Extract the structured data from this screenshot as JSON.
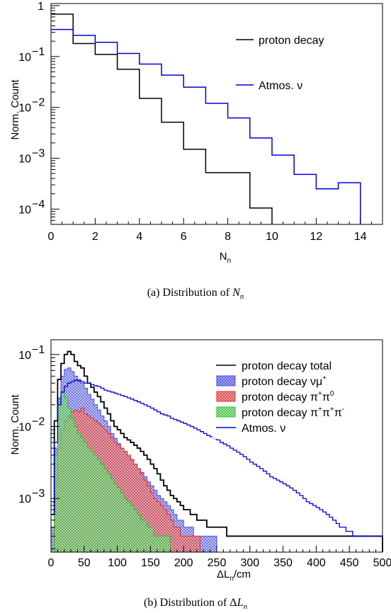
{
  "chart_data": [
    {
      "type": "histogram",
      "caption": "(a)  Distribution of N_n",
      "xlabel": "N_n",
      "ylabel": "Norm. Count",
      "xlim": [
        0,
        15
      ],
      "ylim": [
        5e-05,
        1.1
      ],
      "yscale": "log",
      "x_ticks": [
        0,
        2,
        4,
        6,
        8,
        10,
        12,
        14
      ],
      "y_ticks": [
        {
          "value": 0.0001,
          "base": "10",
          "exp": "−4"
        },
        {
          "value": 0.001,
          "base": "10",
          "exp": "−3"
        },
        {
          "value": 0.01,
          "base": "10",
          "exp": "−2"
        },
        {
          "value": 0.1,
          "base": "10",
          "exp": "−1"
        },
        {
          "value": 1,
          "base": "1",
          "exp": ""
        }
      ],
      "legend_position": "top-right",
      "series": [
        {
          "name": "proton decay",
          "color": "#000000",
          "bin_edges": [
            0,
            1,
            2,
            3,
            4,
            5,
            6,
            7,
            8,
            9,
            10
          ],
          "values": [
            0.68,
            0.18,
            0.11,
            0.056,
            0.015,
            0.0051,
            0.0015,
            0.00052,
            0.00052,
            0.000105
          ]
        },
        {
          "name": "Atmos. ν",
          "color": "#0000dd",
          "bin_edges": [
            0,
            1,
            2,
            3,
            4,
            5,
            6,
            7,
            8,
            9,
            10,
            11,
            12,
            13,
            14
          ],
          "values": [
            0.34,
            0.26,
            0.19,
            0.115,
            0.071,
            0.043,
            0.025,
            0.012,
            0.0062,
            0.0025,
            0.00115,
            0.00048,
            0.00025,
            0.00033
          ]
        }
      ]
    },
    {
      "type": "histogram",
      "caption": "(b)  Distribution of ΔL_n",
      "xlabel": "ΔL_n/cm",
      "ylabel": "Norm. Count",
      "xlim": [
        0,
        500
      ],
      "ylim": [
        0.00018,
        0.16
      ],
      "yscale": "log",
      "x_ticks": [
        0,
        50,
        100,
        150,
        200,
        250,
        300,
        350,
        400,
        450,
        500
      ],
      "y_ticks": [
        {
          "value": 0.001,
          "base": "10",
          "exp": "−3"
        },
        {
          "value": 0.01,
          "base": "10",
          "exp": "−2"
        },
        {
          "value": 0.1,
          "base": "10",
          "exp": "−1"
        }
      ],
      "legend_position": "top-right",
      "series": [
        {
          "name": "proton decay total",
          "legend_sup": "",
          "color": "#000000",
          "fill": "none"
        },
        {
          "name": "proton decay νμ",
          "legend_sup": "+",
          "color": "#4a4ae8",
          "fill": "#aab0f0"
        },
        {
          "name": "proton decay π⁺π⁰",
          "legend_sup": "",
          "color": "#e03030",
          "fill": "#f0a8a8"
        },
        {
          "name": "proton decay π⁺π⁺π⁻",
          "legend_sup": "",
          "color": "#30c030",
          "fill": "#b0e8b0"
        },
        {
          "name": "Atmos. ν",
          "legend_sup": "",
          "color": "#0000dd",
          "fill": "none"
        }
      ],
      "profiles": {
        "x_start": 0,
        "bin_width": 5,
        "total": [
          0.0006,
          0.012,
          0.045,
          0.075,
          0.1,
          0.11,
          0.1,
          0.08,
          0.07,
          0.065,
          0.05,
          0.04,
          0.035,
          0.03,
          0.026,
          0.022,
          0.018,
          0.015,
          0.012,
          0.01,
          0.009,
          0.008,
          0.007,
          0.0065,
          0.006,
          0.0055,
          0.005,
          0.0045,
          0.004,
          0.0035,
          0.003,
          0.0026,
          0.0022,
          0.0018,
          0.0015,
          0.0013,
          0.0011,
          0.001,
          0.0009,
          0.0008,
          0.0007,
          0.0007,
          0.0006,
          0.0006,
          0.0005,
          0.0005,
          0.0005,
          0.0004,
          0.0004,
          0.0004,
          0.0004,
          0.0004,
          0.0004,
          0.0003,
          0.0003,
          0.0003,
          0.0003,
          0.0003,
          0.0003,
          0.0003,
          0.0003,
          0.0003,
          0.0003,
          0.0003,
          0.0003,
          0.0003,
          0.0003,
          0.0003,
          0.0003,
          0.0003,
          0.0003,
          0.0003,
          0.0003,
          0.0003,
          0.0003,
          0.0003,
          0.0003,
          0.0003,
          0.0003,
          0.0003,
          0.0003,
          0.0003,
          0.0003,
          0.0003,
          0.0003,
          0.0003,
          0.0003,
          0.0003,
          0.0003,
          0.0003,
          0.0003,
          0.0003,
          0.0003,
          0.0003,
          0.0003,
          0.0003,
          0.0003,
          0.0003,
          0.0003,
          0.0003
        ],
        "numu": [
          0.0004,
          0.005,
          0.025,
          0.05,
          0.062,
          0.065,
          0.058,
          0.05,
          0.045,
          0.04,
          0.034,
          0.028,
          0.024,
          0.02,
          0.017,
          0.014,
          0.012,
          0.01,
          0.008,
          0.0068,
          0.0058,
          0.005,
          0.0044,
          0.0038,
          0.0034,
          0.003,
          0.0026,
          0.0023,
          0.002,
          0.0017,
          0.0015,
          0.0013,
          0.0011,
          0.001,
          0.0009,
          0.0008,
          0.0007,
          0.0006,
          0.0005,
          0.0005,
          0.0004,
          0.0004,
          0.0004,
          0.0003,
          0.0003,
          0.0003,
          0.0003,
          0.0003,
          0.0003,
          0.0003
        ],
        "pipi0": [
          0.0002,
          0.0015,
          0.005,
          0.009,
          0.012,
          0.014,
          0.016,
          0.017,
          0.016,
          0.018,
          0.015,
          0.014,
          0.013,
          0.012,
          0.011,
          0.01,
          0.009,
          0.008,
          0.007,
          0.006,
          0.0055,
          0.005,
          0.0045,
          0.004,
          0.0035,
          0.003,
          0.0026,
          0.0022,
          0.0018,
          0.0015,
          0.0012,
          0.001,
          0.0009,
          0.0008,
          0.0007,
          0.0006,
          0.0005,
          0.0004,
          0.0004,
          0.0003,
          0.0003,
          0.0003,
          0.0003,
          0.0003,
          0.0003
        ],
        "pipipi": [
          0.0002,
          0.004,
          0.02,
          0.03,
          0.025,
          0.018,
          0.013,
          0.01,
          0.008,
          0.007,
          0.006,
          0.005,
          0.0045,
          0.004,
          0.0035,
          0.003,
          0.0026,
          0.0022,
          0.0019,
          0.0016,
          0.0014,
          0.0012,
          0.001,
          0.0009,
          0.0008,
          0.0007,
          0.0006,
          0.0005,
          0.0005,
          0.0004,
          0.0004,
          0.0003,
          0.0003,
          0.0003,
          0.0003,
          0.0003
        ],
        "atmos": [
          0.0006,
          0.006,
          0.02,
          0.03,
          0.036,
          0.04,
          0.042,
          0.044,
          0.043,
          0.042,
          0.04,
          0.04,
          0.038,
          0.037,
          0.036,
          0.034,
          0.032,
          0.031,
          0.03,
          0.029,
          0.028,
          0.027,
          0.026,
          0.025,
          0.024,
          0.023,
          0.022,
          0.021,
          0.02,
          0.019,
          0.018,
          0.017,
          0.016,
          0.015,
          0.0145,
          0.014,
          0.013,
          0.0125,
          0.012,
          0.0115,
          0.011,
          0.0105,
          0.01,
          0.0095,
          0.009,
          0.0085,
          0.008,
          0.0075,
          0.0072,
          0.0068,
          0.0065,
          0.006,
          0.0057,
          0.0054,
          0.005,
          0.0047,
          0.0044,
          0.0041,
          0.0038,
          0.0035,
          0.0032,
          0.003,
          0.0028,
          0.0026,
          0.0024,
          0.0022,
          0.002,
          0.0019,
          0.0018,
          0.0017,
          0.0016,
          0.0015,
          0.0014,
          0.0013,
          0.0012,
          0.0011,
          0.001,
          0.0009,
          0.00085,
          0.0008,
          0.00075,
          0.0007,
          0.00065,
          0.0006,
          0.00055,
          0.0005,
          0.00045,
          0.0004,
          0.0004,
          0.00035,
          0.00035,
          0.0003,
          0.0003,
          0.0003,
          0.0003,
          0.0003,
          0.0003,
          0.0003,
          0.0003,
          0.0003
        ]
      }
    }
  ]
}
